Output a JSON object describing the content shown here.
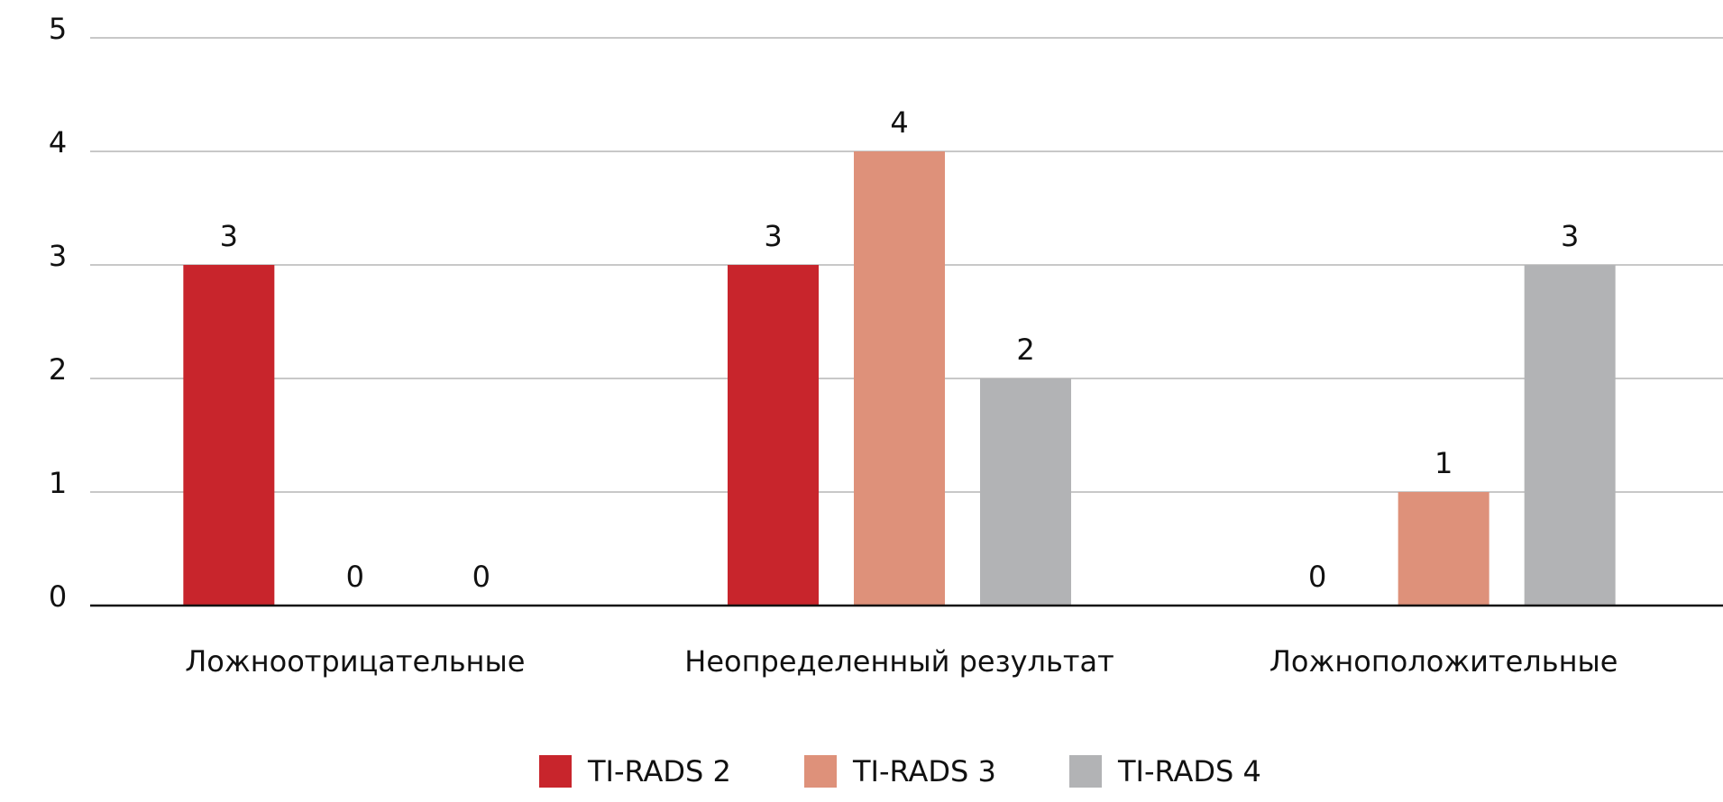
{
  "chart_data": {
    "type": "bar",
    "categories": [
      "Ложноотрицательные",
      "Неопределенный результат",
      "Ложноположительные"
    ],
    "series": [
      {
        "name": "TI-RADS 2",
        "color": "#c8252c",
        "values": [
          3,
          3,
          0
        ]
      },
      {
        "name": "TI-RADS 3",
        "color": "#de917a",
        "values": [
          0,
          4,
          1
        ]
      },
      {
        "name": "TI-RADS 4",
        "color": "#b2b3b5",
        "values": [
          0,
          2,
          3
        ]
      }
    ],
    "ylim": [
      0,
      5
    ],
    "yticks": [
      0,
      1,
      2,
      3,
      4,
      5
    ],
    "grid": true,
    "legend": "bottom"
  }
}
